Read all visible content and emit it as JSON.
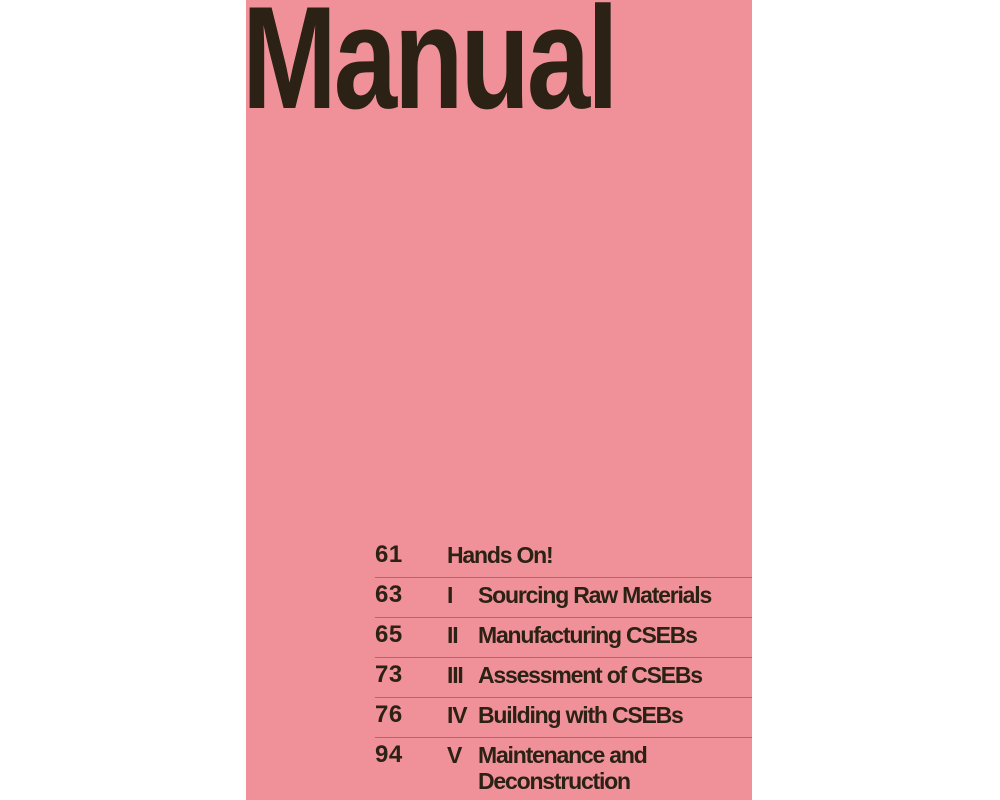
{
  "cover": {
    "title": "Manual"
  },
  "contents": [
    {
      "page": 61,
      "title": "Hands On!"
    },
    {
      "page": 63,
      "numeral": "I",
      "title": "Sourcing Raw Materials"
    },
    {
      "page": 65,
      "numeral": "II",
      "title": "Manufacturing CSEBs"
    },
    {
      "page": 73,
      "numeral": "III",
      "title": "Assessment of CSEBs"
    },
    {
      "page": 76,
      "numeral": "IV",
      "title": "Building with CSEBs"
    },
    {
      "page": 94,
      "numeral": "V",
      "title": "Maintenance and Deconstruction"
    }
  ]
}
